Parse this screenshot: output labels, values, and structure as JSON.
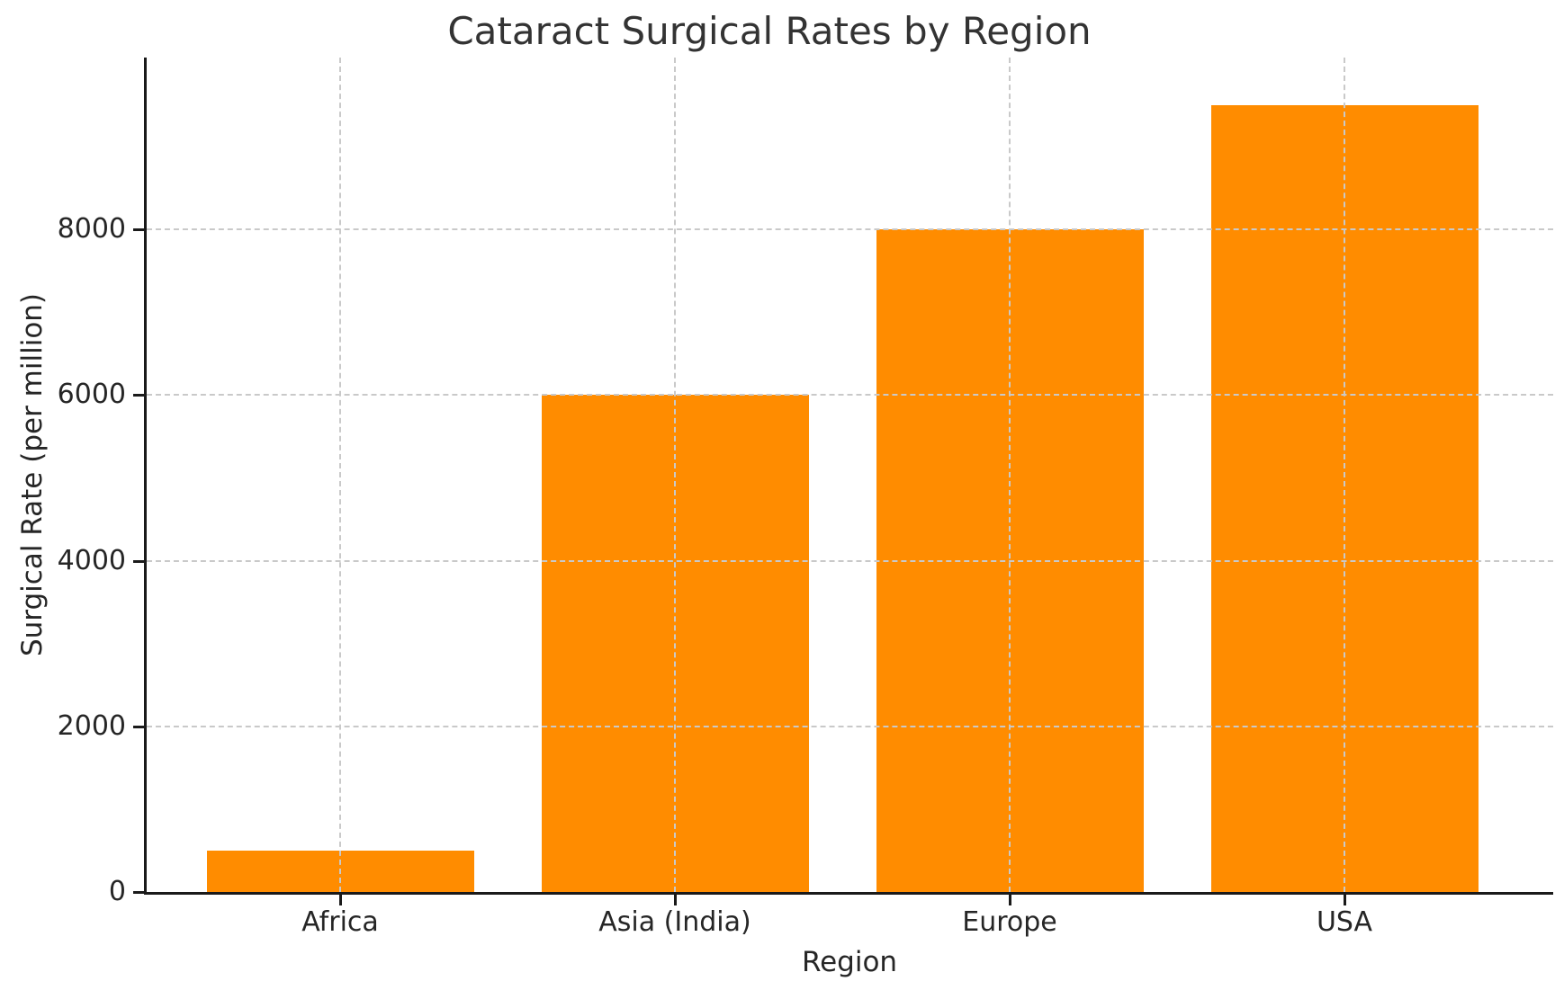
{
  "chart_data": {
    "type": "bar",
    "title": "Cataract Surgical Rates by Region",
    "xlabel": "Region",
    "ylabel": "Surgical Rate (per million)",
    "categories": [
      "Africa",
      "Asia (India)",
      "Europe",
      "USA"
    ],
    "values": [
      500,
      6000,
      8000,
      9500
    ],
    "yticks": [
      0,
      2000,
      4000,
      6000,
      8000
    ],
    "ylim": [
      0,
      10075
    ],
    "grid": "dashed gridlines on both axes, drawn above bars",
    "legend": "none",
    "colors": {
      "bar": "#FF8C00",
      "grid": "#c9c9c9",
      "text": "#262626",
      "title_text": "#333333",
      "spine": "#1a1a1a",
      "background": "#ffffff"
    }
  }
}
